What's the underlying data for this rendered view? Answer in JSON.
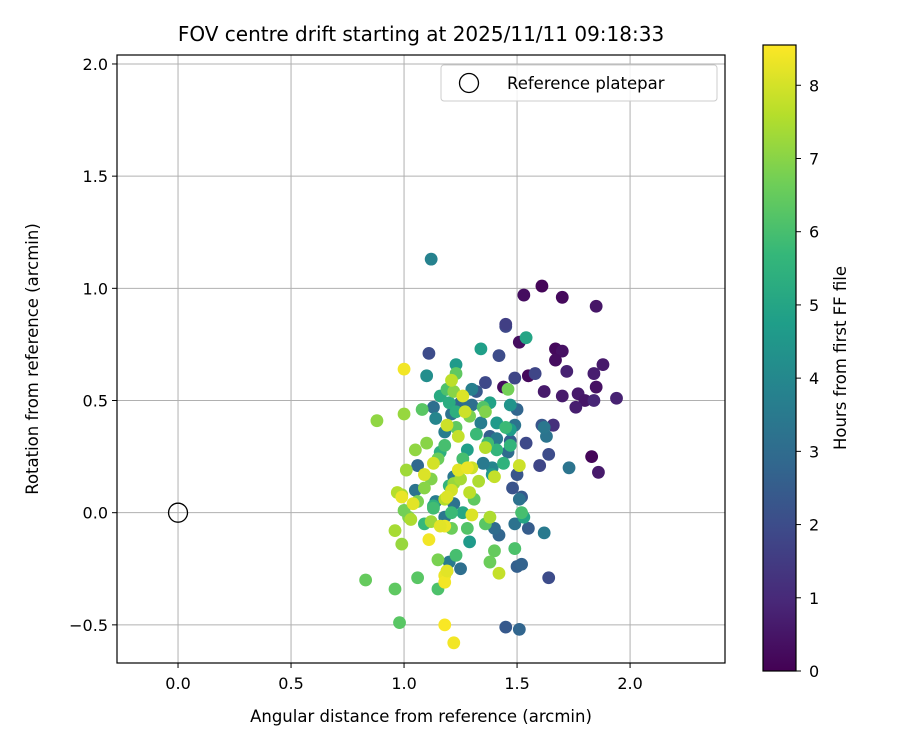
{
  "chart_data": {
    "type": "scatter",
    "title": "FOV centre drift starting at 2025/11/11 09:18:33",
    "xlabel": "Angular distance from reference (arcmin)",
    "ylabel": "Rotation from reference (arcmin)",
    "xlim": [
      -0.27,
      2.42
    ],
    "ylim": [
      -0.67,
      2.04
    ],
    "xticks": [
      0.0,
      0.5,
      1.0,
      1.5,
      2.0
    ],
    "xtick_labels": [
      "0.0",
      "0.5",
      "1.0",
      "1.5",
      "2.0"
    ],
    "yticks": [
      -0.5,
      0.0,
      0.5,
      1.0,
      1.5,
      2.0
    ],
    "ytick_labels": [
      "−0.5",
      "0.0",
      "0.5",
      "1.0",
      "1.5",
      "2.0"
    ],
    "grid": true,
    "legend": {
      "label": "Reference platepar",
      "position": "top-right"
    },
    "reference": {
      "x": 0.0,
      "y": 0.0
    },
    "colorbar": {
      "label": "Hours from first FF file",
      "range": [
        0,
        8.55
      ],
      "ticks": [
        0,
        1,
        2,
        3,
        4,
        5,
        6,
        7,
        8
      ],
      "tick_labels": [
        "0",
        "1",
        "2",
        "3",
        "4",
        "5",
        "6",
        "7",
        "8"
      ],
      "colormap": "viridis",
      "colors": [
        "#440154",
        "#482878",
        "#3e4989",
        "#31688e",
        "#26828e",
        "#1f9e89",
        "#35b779",
        "#6ece58",
        "#b5de2b",
        "#fde725"
      ]
    },
    "points": [
      [
        1.61,
        1.01,
        0.1
      ],
      [
        1.7,
        0.96,
        0.2
      ],
      [
        1.53,
        0.97,
        0.3
      ],
      [
        1.85,
        0.92,
        0.5
      ],
      [
        1.51,
        0.76,
        0.3
      ],
      [
        1.67,
        0.73,
        0.2
      ],
      [
        1.7,
        0.72,
        0.4
      ],
      [
        1.88,
        0.66,
        0.6
      ],
      [
        1.72,
        0.63,
        0.8
      ],
      [
        1.84,
        0.62,
        0.7
      ],
      [
        1.55,
        0.61,
        0.2
      ],
      [
        1.77,
        0.53,
        0.6
      ],
      [
        1.8,
        0.5,
        0.5
      ],
      [
        1.84,
        0.5,
        0.9
      ],
      [
        1.94,
        0.51,
        0.8
      ],
      [
        1.76,
        0.47,
        0.7
      ],
      [
        1.7,
        0.52,
        0.6
      ],
      [
        1.85,
        0.56,
        0.4
      ],
      [
        1.86,
        0.18,
        0.6
      ],
      [
        1.83,
        0.25,
        0.1
      ],
      [
        1.67,
        0.68,
        0.3
      ],
      [
        1.44,
        0.56,
        0.3
      ],
      [
        1.62,
        0.54,
        0.6
      ],
      [
        1.66,
        0.39,
        0.9
      ],
      [
        1.45,
        0.83,
        1.9
      ],
      [
        1.45,
        0.84,
        1.6
      ],
      [
        1.42,
        0.7,
        2.0
      ],
      [
        1.32,
        0.54,
        2.4
      ],
      [
        1.49,
        0.6,
        1.8
      ],
      [
        1.58,
        0.62,
        1.8
      ],
      [
        1.61,
        0.39,
        2.3
      ],
      [
        1.6,
        0.21,
        1.8
      ],
      [
        1.54,
        0.31,
        1.9
      ],
      [
        1.64,
        0.26,
        2.0
      ],
      [
        1.66,
        0.39,
        1.2
      ],
      [
        1.36,
        0.58,
        1.9
      ],
      [
        1.11,
        0.71,
        2.0
      ],
      [
        1.5,
        0.17,
        2.3
      ],
      [
        1.52,
        0.07,
        2.4
      ],
      [
        1.48,
        0.11,
        2.2
      ],
      [
        1.64,
        -0.29,
        2.0
      ],
      [
        1.5,
        -0.24,
        2.6
      ],
      [
        1.52,
        -0.23,
        2.7
      ],
      [
        1.45,
        -0.51,
        2.4
      ],
      [
        1.51,
        -0.52,
        2.8
      ],
      [
        1.5,
        0.46,
        2.8
      ],
      [
        1.47,
        0.32,
        2.6
      ],
      [
        1.55,
        -0.07,
        2.5
      ],
      [
        1.38,
        0.34,
        2.6
      ],
      [
        1.12,
        1.13,
        3.8
      ],
      [
        1.06,
        0.21,
        2.9
      ],
      [
        1.13,
        0.47,
        3.1
      ],
      [
        1.21,
        0.44,
        3.2
      ],
      [
        1.25,
        0.49,
        3.0
      ],
      [
        1.3,
        0.48,
        3.1
      ],
      [
        1.34,
        0.4,
        3.6
      ],
      [
        1.41,
        0.33,
        3.5
      ],
      [
        1.46,
        0.27,
        3.0
      ],
      [
        1.49,
        0.39,
        3.3
      ],
      [
        1.51,
        0.06,
        3.2
      ],
      [
        1.62,
        -0.09,
        3.5
      ],
      [
        1.49,
        -0.05,
        3.2
      ],
      [
        1.42,
        -0.1,
        2.8
      ],
      [
        1.4,
        -0.07,
        3.0
      ],
      [
        1.63,
        0.34,
        3.3
      ],
      [
        1.73,
        0.2,
        3.3
      ],
      [
        1.62,
        0.38,
        3.4
      ],
      [
        1.22,
        0.04,
        3.2
      ],
      [
        1.18,
        -0.02,
        3.4
      ],
      [
        1.14,
        0.05,
        3.6
      ],
      [
        1.39,
        0.2,
        3.9
      ],
      [
        1.25,
        -0.25,
        3.1
      ],
      [
        1.2,
        -0.22,
        3.5
      ],
      [
        1.35,
        0.22,
        3.5
      ],
      [
        1.3,
        0.55,
        3.7
      ],
      [
        1.14,
        0.42,
        3.9
      ],
      [
        1.18,
        0.36,
        3.6
      ],
      [
        1.22,
        0.16,
        3.4
      ],
      [
        1.05,
        0.1,
        3.3
      ],
      [
        1.1,
        0.61,
        4.2
      ],
      [
        1.23,
        0.66,
        4.6
      ],
      [
        1.34,
        0.73,
        4.8
      ],
      [
        1.54,
        0.78,
        5.0
      ],
      [
        1.41,
        0.4,
        4.6
      ],
      [
        1.38,
        0.49,
        4.9
      ],
      [
        1.47,
        0.37,
        4.7
      ],
      [
        1.39,
        0.17,
        4.5
      ],
      [
        1.47,
        0.48,
        4.4
      ],
      [
        1.29,
        -0.13,
        4.6
      ],
      [
        1.16,
        0.52,
        5.2
      ],
      [
        1.28,
        0.28,
        4.8
      ],
      [
        1.2,
        0.49,
        5.3
      ],
      [
        1.23,
        0.45,
        5.4
      ],
      [
        1.44,
        0.22,
        5.5
      ],
      [
        1.26,
        0.0,
        5.1
      ],
      [
        1.53,
        -0.02,
        5.0
      ],
      [
        1.41,
        0.28,
        5.6
      ],
      [
        1.16,
        0.27,
        5.4
      ],
      [
        1.32,
        0.35,
        5.8
      ],
      [
        1.37,
        0.31,
        5.9
      ],
      [
        1.47,
        0.3,
        5.6
      ],
      [
        1.45,
        0.38,
        5.8
      ],
      [
        1.13,
        0.03,
        5.4
      ],
      [
        1.21,
        0.0,
        5.8
      ],
      [
        1.09,
        -0.05,
        5.7
      ],
      [
        1.13,
        0.02,
        5.9
      ],
      [
        1.2,
        0.12,
        5.6
      ],
      [
        1.18,
        0.3,
        6.0
      ],
      [
        1.26,
        0.24,
        6.0
      ],
      [
        1.35,
        0.47,
        6.2
      ],
      [
        1.23,
        0.62,
        6.4
      ],
      [
        1.19,
        0.55,
        6.1
      ],
      [
        1.08,
        0.46,
        6.3
      ],
      [
        0.98,
        -0.49,
        6.3
      ],
      [
        0.96,
        -0.34,
        6.4
      ],
      [
        0.83,
        -0.3,
        6.5
      ],
      [
        1.06,
        -0.29,
        6.3
      ],
      [
        1.15,
        -0.34,
        6.1
      ],
      [
        1.23,
        -0.19,
        6.0
      ],
      [
        1.28,
        -0.07,
        6.2
      ],
      [
        1.31,
        0.06,
        6.4
      ],
      [
        1.36,
        -0.05,
        6.3
      ],
      [
        1.4,
        -0.17,
        6.5
      ],
      [
        1.49,
        -0.16,
        6.1
      ],
      [
        1.52,
        0.0,
        6.0
      ],
      [
        1.38,
        -0.22,
        6.6
      ],
      [
        1.19,
        -0.26,
        6.7
      ],
      [
        1.15,
        -0.21,
        6.8
      ],
      [
        1.21,
        -0.07,
        6.6
      ],
      [
        1.02,
        -0.02,
        6.9
      ],
      [
        1.0,
        0.01,
        6.7
      ],
      [
        1.06,
        0.05,
        6.8
      ],
      [
        1.12,
        0.15,
        6.9
      ],
      [
        1.15,
        0.24,
        6.6
      ],
      [
        1.23,
        0.38,
        6.4
      ],
      [
        1.29,
        0.43,
        6.8
      ],
      [
        1.36,
        0.45,
        6.9
      ],
      [
        1.46,
        0.55,
        6.7
      ],
      [
        1.1,
        0.31,
        7.0
      ],
      [
        1.22,
        0.54,
        7.0
      ],
      [
        1.05,
        0.28,
        7.1
      ],
      [
        1.09,
        0.11,
        7.0
      ],
      [
        1.0,
        0.44,
        7.2
      ],
      [
        0.88,
        0.41,
        7.1
      ],
      [
        1.01,
        0.19,
        7.3
      ],
      [
        0.99,
        0.08,
        7.4
      ],
      [
        0.97,
        0.09,
        7.6
      ],
      [
        0.96,
        -0.08,
        7.4
      ],
      [
        0.99,
        -0.14,
        7.2
      ],
      [
        1.03,
        -0.03,
        7.5
      ],
      [
        1.12,
        -0.04,
        7.3
      ],
      [
        1.18,
        0.06,
        7.6
      ],
      [
        1.22,
        0.13,
        7.2
      ],
      [
        1.25,
        0.15,
        7.4
      ],
      [
        1.29,
        0.09,
        7.7
      ],
      [
        1.33,
        0.14,
        7.5
      ],
      [
        1.36,
        0.29,
        7.6
      ],
      [
        1.38,
        -0.02,
        7.5
      ],
      [
        1.42,
        -0.27,
        7.8
      ],
      [
        1.51,
        0.21,
        7.9
      ],
      [
        1.4,
        0.16,
        7.8
      ],
      [
        1.3,
        0.2,
        7.9
      ],
      [
        1.24,
        0.34,
        7.8
      ],
      [
        1.19,
        0.39,
        7.9
      ],
      [
        1.13,
        0.22,
        8.0
      ],
      [
        1.09,
        0.17,
        8.1
      ],
      [
        1.04,
        0.04,
        8.2
      ],
      [
        0.99,
        0.07,
        8.3
      ],
      [
        1.0,
        0.64,
        8.4
      ],
      [
        1.21,
        0.59,
        7.7
      ],
      [
        1.26,
        0.52,
        8.1
      ],
      [
        1.27,
        0.45,
        7.9
      ],
      [
        1.24,
        0.19,
        8.2
      ],
      [
        1.28,
        0.2,
        8.3
      ],
      [
        1.21,
        0.1,
        8.0
      ],
      [
        1.19,
        0.07,
        8.1
      ],
      [
        1.18,
        -0.06,
        8.3
      ],
      [
        1.16,
        -0.06,
        8.2
      ],
      [
        1.11,
        -0.12,
        8.4
      ],
      [
        1.18,
        -0.28,
        8.3
      ],
      [
        1.18,
        -0.31,
        8.4
      ],
      [
        1.19,
        -0.26,
        8.2
      ],
      [
        1.3,
        -0.01,
        8.1
      ],
      [
        1.22,
        -0.58,
        8.4
      ],
      [
        1.18,
        -0.5,
        8.5
      ]
    ]
  }
}
